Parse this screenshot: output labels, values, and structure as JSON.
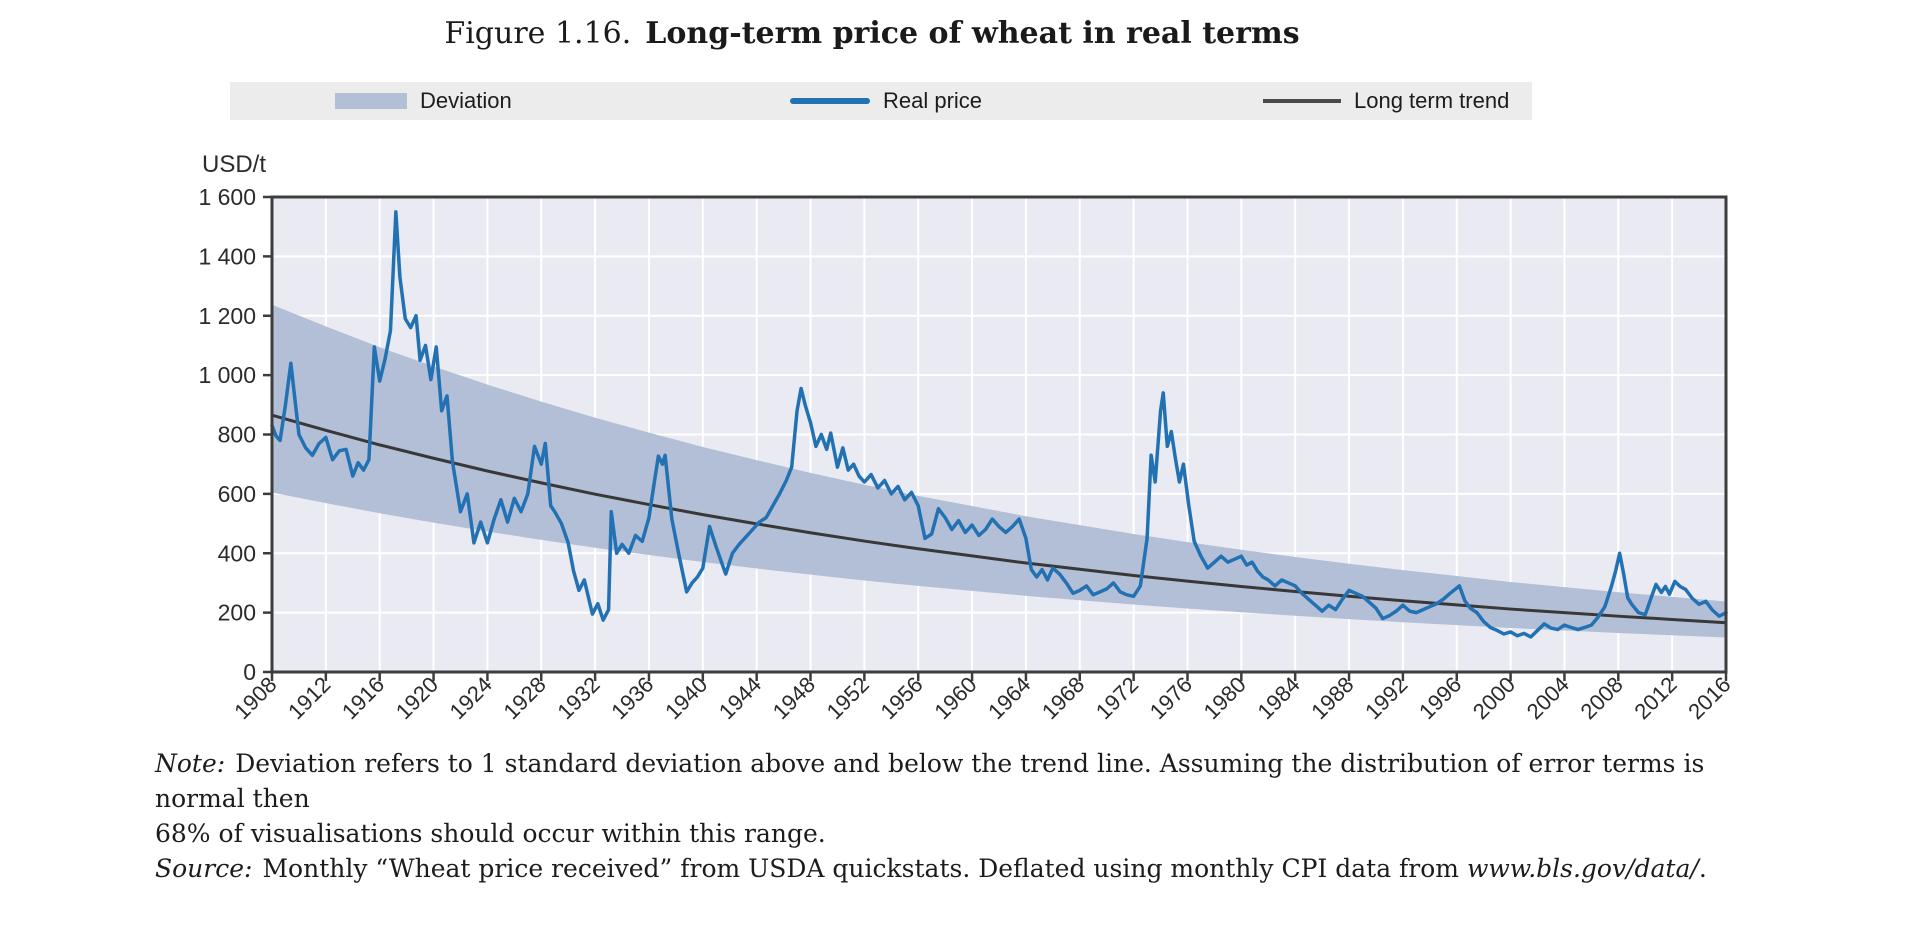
{
  "figure": {
    "title_prefix": "Figure 1.16.",
    "title": "Long-term price of wheat in real terms"
  },
  "legend": {
    "items": [
      {
        "label": "Deviation",
        "type": "band",
        "color": "#b3bfd6"
      },
      {
        "label": "Real price",
        "type": "line",
        "color": "#2271b3"
      },
      {
        "label": "Long term trend",
        "type": "line",
        "color": "#4a4a4a"
      }
    ]
  },
  "notes": {
    "note_label": "Note:",
    "note_line1": "Deviation refers to 1 standard deviation above and below the trend line. Assuming the distribution of error terms is normal then",
    "note_line2": "68% of visualisations should occur within this range.",
    "source_label": "Source:",
    "source_text_before": "Monthly “Wheat price received” from USDA quickstats. Deflated using monthly CPI data from ",
    "source_link": "www.bls.gov/data/",
    "source_text_after": "."
  },
  "chart_data": {
    "type": "line",
    "title": "Figure 1.16. Long-term price of wheat in real terms",
    "xlabel": "",
    "ylabel": "USD/t",
    "xlim": [
      1908,
      2016
    ],
    "ylim": [
      0,
      1600
    ],
    "ytick_step": 200,
    "ytick_labels": [
      "0",
      "200",
      "400",
      "600",
      "800",
      "1 000",
      "1 200",
      "1 400",
      "1 600"
    ],
    "xticks": [
      1908,
      1912,
      1916,
      1920,
      1924,
      1928,
      1932,
      1936,
      1940,
      1944,
      1948,
      1952,
      1956,
      1960,
      1964,
      1968,
      1972,
      1976,
      1980,
      1984,
      1988,
      1992,
      1996,
      2000,
      2004,
      2008,
      2012,
      2016
    ],
    "grid": true,
    "plot_bg": "#e9eaf2",
    "grid_color": "#ffffff",
    "axis_color": "#3d3d3d",
    "legend_position": "top",
    "series": [
      {
        "name": "Real price",
        "role": "price",
        "type": "line",
        "color": "#2271b3",
        "width": 3.5,
        "points": [
          [
            1908.0,
            830
          ],
          [
            1908.3,
            795
          ],
          [
            1908.6,
            780
          ],
          [
            1909.0,
            900
          ],
          [
            1909.4,
            1040
          ],
          [
            1909.7,
            920
          ],
          [
            1910.0,
            800
          ],
          [
            1910.5,
            755
          ],
          [
            1911.0,
            730
          ],
          [
            1911.5,
            770
          ],
          [
            1912.0,
            790
          ],
          [
            1912.5,
            715
          ],
          [
            1913.0,
            745
          ],
          [
            1913.5,
            750
          ],
          [
            1914.0,
            660
          ],
          [
            1914.4,
            705
          ],
          [
            1914.8,
            680
          ],
          [
            1915.2,
            715
          ],
          [
            1915.6,
            1095
          ],
          [
            1916.0,
            980
          ],
          [
            1916.4,
            1055
          ],
          [
            1916.8,
            1150
          ],
          [
            1917.2,
            1550
          ],
          [
            1917.5,
            1330
          ],
          [
            1917.9,
            1190
          ],
          [
            1918.3,
            1160
          ],
          [
            1918.7,
            1200
          ],
          [
            1919.0,
            1050
          ],
          [
            1919.4,
            1100
          ],
          [
            1919.8,
            985
          ],
          [
            1920.2,
            1095
          ],
          [
            1920.6,
            880
          ],
          [
            1921.0,
            930
          ],
          [
            1921.4,
            710
          ],
          [
            1922.0,
            540
          ],
          [
            1922.5,
            600
          ],
          [
            1923.0,
            435
          ],
          [
            1923.5,
            505
          ],
          [
            1924.0,
            435
          ],
          [
            1924.5,
            515
          ],
          [
            1925.0,
            580
          ],
          [
            1925.5,
            505
          ],
          [
            1926.0,
            585
          ],
          [
            1926.5,
            540
          ],
          [
            1927.0,
            600
          ],
          [
            1927.5,
            760
          ],
          [
            1928.0,
            700
          ],
          [
            1928.3,
            770
          ],
          [
            1928.7,
            560
          ],
          [
            1929.0,
            540
          ],
          [
            1929.5,
            500
          ],
          [
            1930.0,
            435
          ],
          [
            1930.4,
            340
          ],
          [
            1930.8,
            275
          ],
          [
            1931.2,
            310
          ],
          [
            1931.8,
            195
          ],
          [
            1932.2,
            230
          ],
          [
            1932.6,
            175
          ],
          [
            1933.0,
            210
          ],
          [
            1933.2,
            540
          ],
          [
            1933.6,
            400
          ],
          [
            1934.0,
            430
          ],
          [
            1934.5,
            400
          ],
          [
            1935.0,
            460
          ],
          [
            1935.5,
            440
          ],
          [
            1936.0,
            520
          ],
          [
            1936.4,
            640
          ],
          [
            1936.7,
            727
          ],
          [
            1937.0,
            700
          ],
          [
            1937.2,
            730
          ],
          [
            1937.7,
            515
          ],
          [
            1938.2,
            400
          ],
          [
            1938.8,
            270
          ],
          [
            1939.2,
            300
          ],
          [
            1939.6,
            320
          ],
          [
            1940.0,
            350
          ],
          [
            1940.5,
            490
          ],
          [
            1941.0,
            420
          ],
          [
            1941.7,
            330
          ],
          [
            1942.2,
            400
          ],
          [
            1942.7,
            430
          ],
          [
            1943.2,
            455
          ],
          [
            1943.7,
            480
          ],
          [
            1944.2,
            505
          ],
          [
            1944.7,
            520
          ],
          [
            1945.2,
            560
          ],
          [
            1945.7,
            600
          ],
          [
            1946.2,
            645
          ],
          [
            1946.6,
            690
          ],
          [
            1947.0,
            880
          ],
          [
            1947.3,
            955
          ],
          [
            1947.6,
            900
          ],
          [
            1948.0,
            840
          ],
          [
            1948.4,
            760
          ],
          [
            1948.8,
            800
          ],
          [
            1949.2,
            750
          ],
          [
            1949.5,
            805
          ],
          [
            1950.0,
            690
          ],
          [
            1950.4,
            755
          ],
          [
            1950.8,
            680
          ],
          [
            1951.2,
            700
          ],
          [
            1951.6,
            660
          ],
          [
            1952.0,
            640
          ],
          [
            1952.5,
            665
          ],
          [
            1953.0,
            620
          ],
          [
            1953.5,
            645
          ],
          [
            1954.0,
            600
          ],
          [
            1954.5,
            625
          ],
          [
            1955.0,
            580
          ],
          [
            1955.5,
            605
          ],
          [
            1956.0,
            560
          ],
          [
            1956.5,
            450
          ],
          [
            1957.0,
            465
          ],
          [
            1957.5,
            550
          ],
          [
            1958.0,
            520
          ],
          [
            1958.5,
            480
          ],
          [
            1959.0,
            510
          ],
          [
            1959.5,
            470
          ],
          [
            1960.0,
            495
          ],
          [
            1960.5,
            460
          ],
          [
            1961.0,
            480
          ],
          [
            1961.5,
            515
          ],
          [
            1962.0,
            490
          ],
          [
            1962.5,
            470
          ],
          [
            1963.0,
            490
          ],
          [
            1963.5,
            515
          ],
          [
            1964.0,
            450
          ],
          [
            1964.4,
            345
          ],
          [
            1964.8,
            320
          ],
          [
            1965.2,
            345
          ],
          [
            1965.6,
            310
          ],
          [
            1966.0,
            350
          ],
          [
            1966.5,
            330
          ],
          [
            1967.0,
            300
          ],
          [
            1967.5,
            265
          ],
          [
            1968.0,
            275
          ],
          [
            1968.5,
            290
          ],
          [
            1969.0,
            260
          ],
          [
            1969.5,
            270
          ],
          [
            1970.0,
            280
          ],
          [
            1970.5,
            300
          ],
          [
            1971.0,
            270
          ],
          [
            1971.5,
            260
          ],
          [
            1972.0,
            255
          ],
          [
            1972.5,
            290
          ],
          [
            1973.0,
            450
          ],
          [
            1973.3,
            730
          ],
          [
            1973.6,
            640
          ],
          [
            1974.0,
            880
          ],
          [
            1974.2,
            940
          ],
          [
            1974.5,
            760
          ],
          [
            1974.8,
            810
          ],
          [
            1975.1,
            720
          ],
          [
            1975.4,
            640
          ],
          [
            1975.7,
            700
          ],
          [
            1976.1,
            560
          ],
          [
            1976.5,
            440
          ],
          [
            1977.0,
            390
          ],
          [
            1977.5,
            350
          ],
          [
            1978.0,
            370
          ],
          [
            1978.5,
            390
          ],
          [
            1979.0,
            370
          ],
          [
            1979.5,
            380
          ],
          [
            1980.0,
            390
          ],
          [
            1980.4,
            360
          ],
          [
            1980.8,
            370
          ],
          [
            1981.2,
            340
          ],
          [
            1981.6,
            320
          ],
          [
            1982.0,
            310
          ],
          [
            1982.5,
            290
          ],
          [
            1983.0,
            310
          ],
          [
            1983.5,
            300
          ],
          [
            1984.0,
            290
          ],
          [
            1984.5,
            265
          ],
          [
            1985.0,
            245
          ],
          [
            1985.5,
            225
          ],
          [
            1986.0,
            205
          ],
          [
            1986.5,
            225
          ],
          [
            1987.0,
            210
          ],
          [
            1987.5,
            245
          ],
          [
            1988.0,
            275
          ],
          [
            1988.5,
            265
          ],
          [
            1989.0,
            255
          ],
          [
            1989.5,
            235
          ],
          [
            1990.0,
            215
          ],
          [
            1990.5,
            180
          ],
          [
            1991.0,
            190
          ],
          [
            1991.5,
            205
          ],
          [
            1992.0,
            225
          ],
          [
            1992.5,
            205
          ],
          [
            1993.0,
            200
          ],
          [
            1993.5,
            210
          ],
          [
            1994.0,
            220
          ],
          [
            1994.5,
            230
          ],
          [
            1995.0,
            245
          ],
          [
            1995.5,
            265
          ],
          [
            1996.2,
            290
          ],
          [
            1996.6,
            240
          ],
          [
            1997.0,
            215
          ],
          [
            1997.5,
            200
          ],
          [
            1998.0,
            170
          ],
          [
            1998.5,
            150
          ],
          [
            1999.0,
            140
          ],
          [
            1999.5,
            128
          ],
          [
            2000.0,
            135
          ],
          [
            2000.5,
            122
          ],
          [
            2001.0,
            130
          ],
          [
            2001.5,
            118
          ],
          [
            2002.0,
            140
          ],
          [
            2002.5,
            162
          ],
          [
            2003.0,
            148
          ],
          [
            2003.5,
            143
          ],
          [
            2004.0,
            158
          ],
          [
            2004.5,
            150
          ],
          [
            2005.0,
            143
          ],
          [
            2005.5,
            150
          ],
          [
            2006.0,
            158
          ],
          [
            2006.5,
            185
          ],
          [
            2007.0,
            220
          ],
          [
            2007.5,
            290
          ],
          [
            2007.8,
            340
          ],
          [
            2008.1,
            400
          ],
          [
            2008.4,
            330
          ],
          [
            2008.7,
            250
          ],
          [
            2009.0,
            228
          ],
          [
            2009.5,
            200
          ],
          [
            2010.0,
            193
          ],
          [
            2010.5,
            258
          ],
          [
            2010.8,
            295
          ],
          [
            2011.2,
            268
          ],
          [
            2011.5,
            288
          ],
          [
            2011.8,
            262
          ],
          [
            2012.2,
            305
          ],
          [
            2012.6,
            288
          ],
          [
            2013.0,
            278
          ],
          [
            2013.5,
            248
          ],
          [
            2014.0,
            228
          ],
          [
            2014.5,
            238
          ],
          [
            2015.0,
            208
          ],
          [
            2015.5,
            188
          ],
          [
            2016.0,
            200
          ]
        ]
      },
      {
        "name": "Long term trend",
        "role": "trend",
        "type": "line",
        "color": "#383838",
        "width": 3,
        "points": [
          [
            1908,
            865
          ],
          [
            1912,
            814
          ],
          [
            1916,
            765
          ],
          [
            1920,
            720
          ],
          [
            1924,
            677
          ],
          [
            1928,
            637
          ],
          [
            1932,
            599
          ],
          [
            1936,
            564
          ],
          [
            1940,
            530
          ],
          [
            1944,
            499
          ],
          [
            1948,
            469
          ],
          [
            1952,
            441
          ],
          [
            1956,
            415
          ],
          [
            1960,
            391
          ],
          [
            1964,
            367
          ],
          [
            1968,
            346
          ],
          [
            1972,
            325
          ],
          [
            1976,
            306
          ],
          [
            1980,
            288
          ],
          [
            1984,
            271
          ],
          [
            1988,
            255
          ],
          [
            1992,
            240
          ],
          [
            1996,
            226
          ],
          [
            2000,
            212
          ],
          [
            2004,
            200
          ],
          [
            2008,
            188
          ],
          [
            2012,
            177
          ],
          [
            2016,
            166
          ]
        ]
      },
      {
        "name": "Deviation",
        "role": "band",
        "type": "area",
        "color": "#b3bfd6",
        "description": "1 standard deviation above and below the trend line",
        "base_series": "Long term trend",
        "upper_factor": 1.43,
        "lower_factor": 0.699
      }
    ]
  }
}
